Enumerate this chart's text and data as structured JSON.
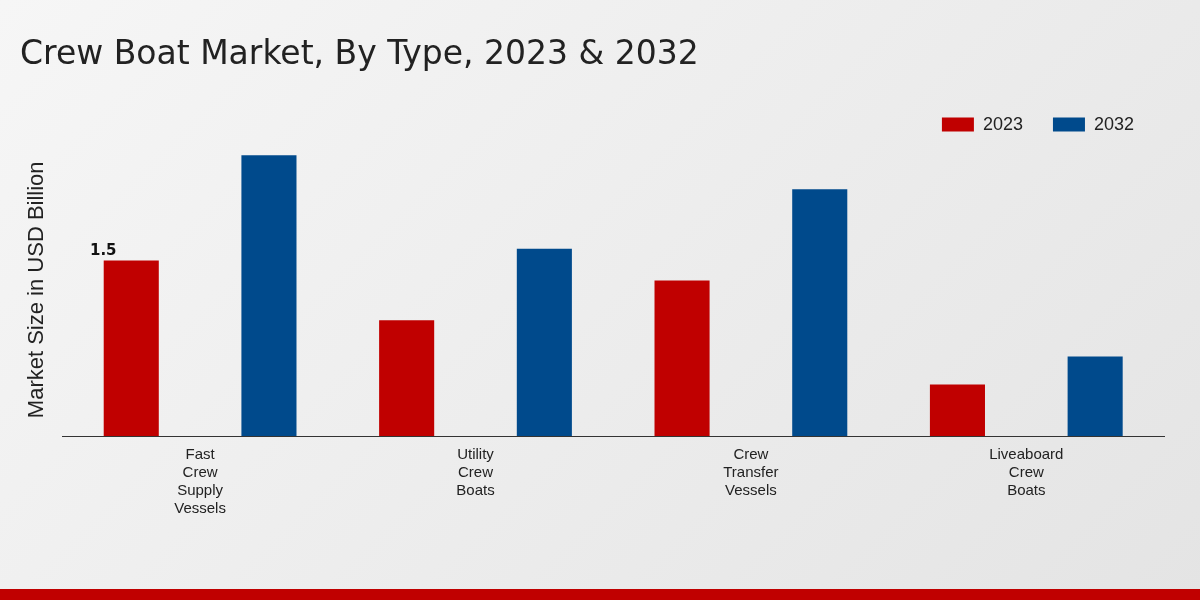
{
  "chart_data": {
    "type": "bar",
    "title": "Crew Boat Market, By Type, 2023 & 2032",
    "ylabel": "Market Size in USD Billion",
    "categories": [
      "Fast Crew Supply Vessels",
      "Utility Crew Boats",
      "Crew Transfer Vessels",
      "Liveaboard Crew Boats"
    ],
    "series": [
      {
        "name": "2023",
        "color": "#c00000",
        "values": [
          1.5,
          0.99,
          1.33,
          0.44
        ],
        "value_labels": [
          "1.5",
          null,
          null,
          null
        ]
      },
      {
        "name": "2032",
        "color": "#004a8c",
        "values": [
          2.4,
          1.6,
          2.11,
          0.68
        ]
      }
    ],
    "legend": "top right",
    "grid": false
  }
}
